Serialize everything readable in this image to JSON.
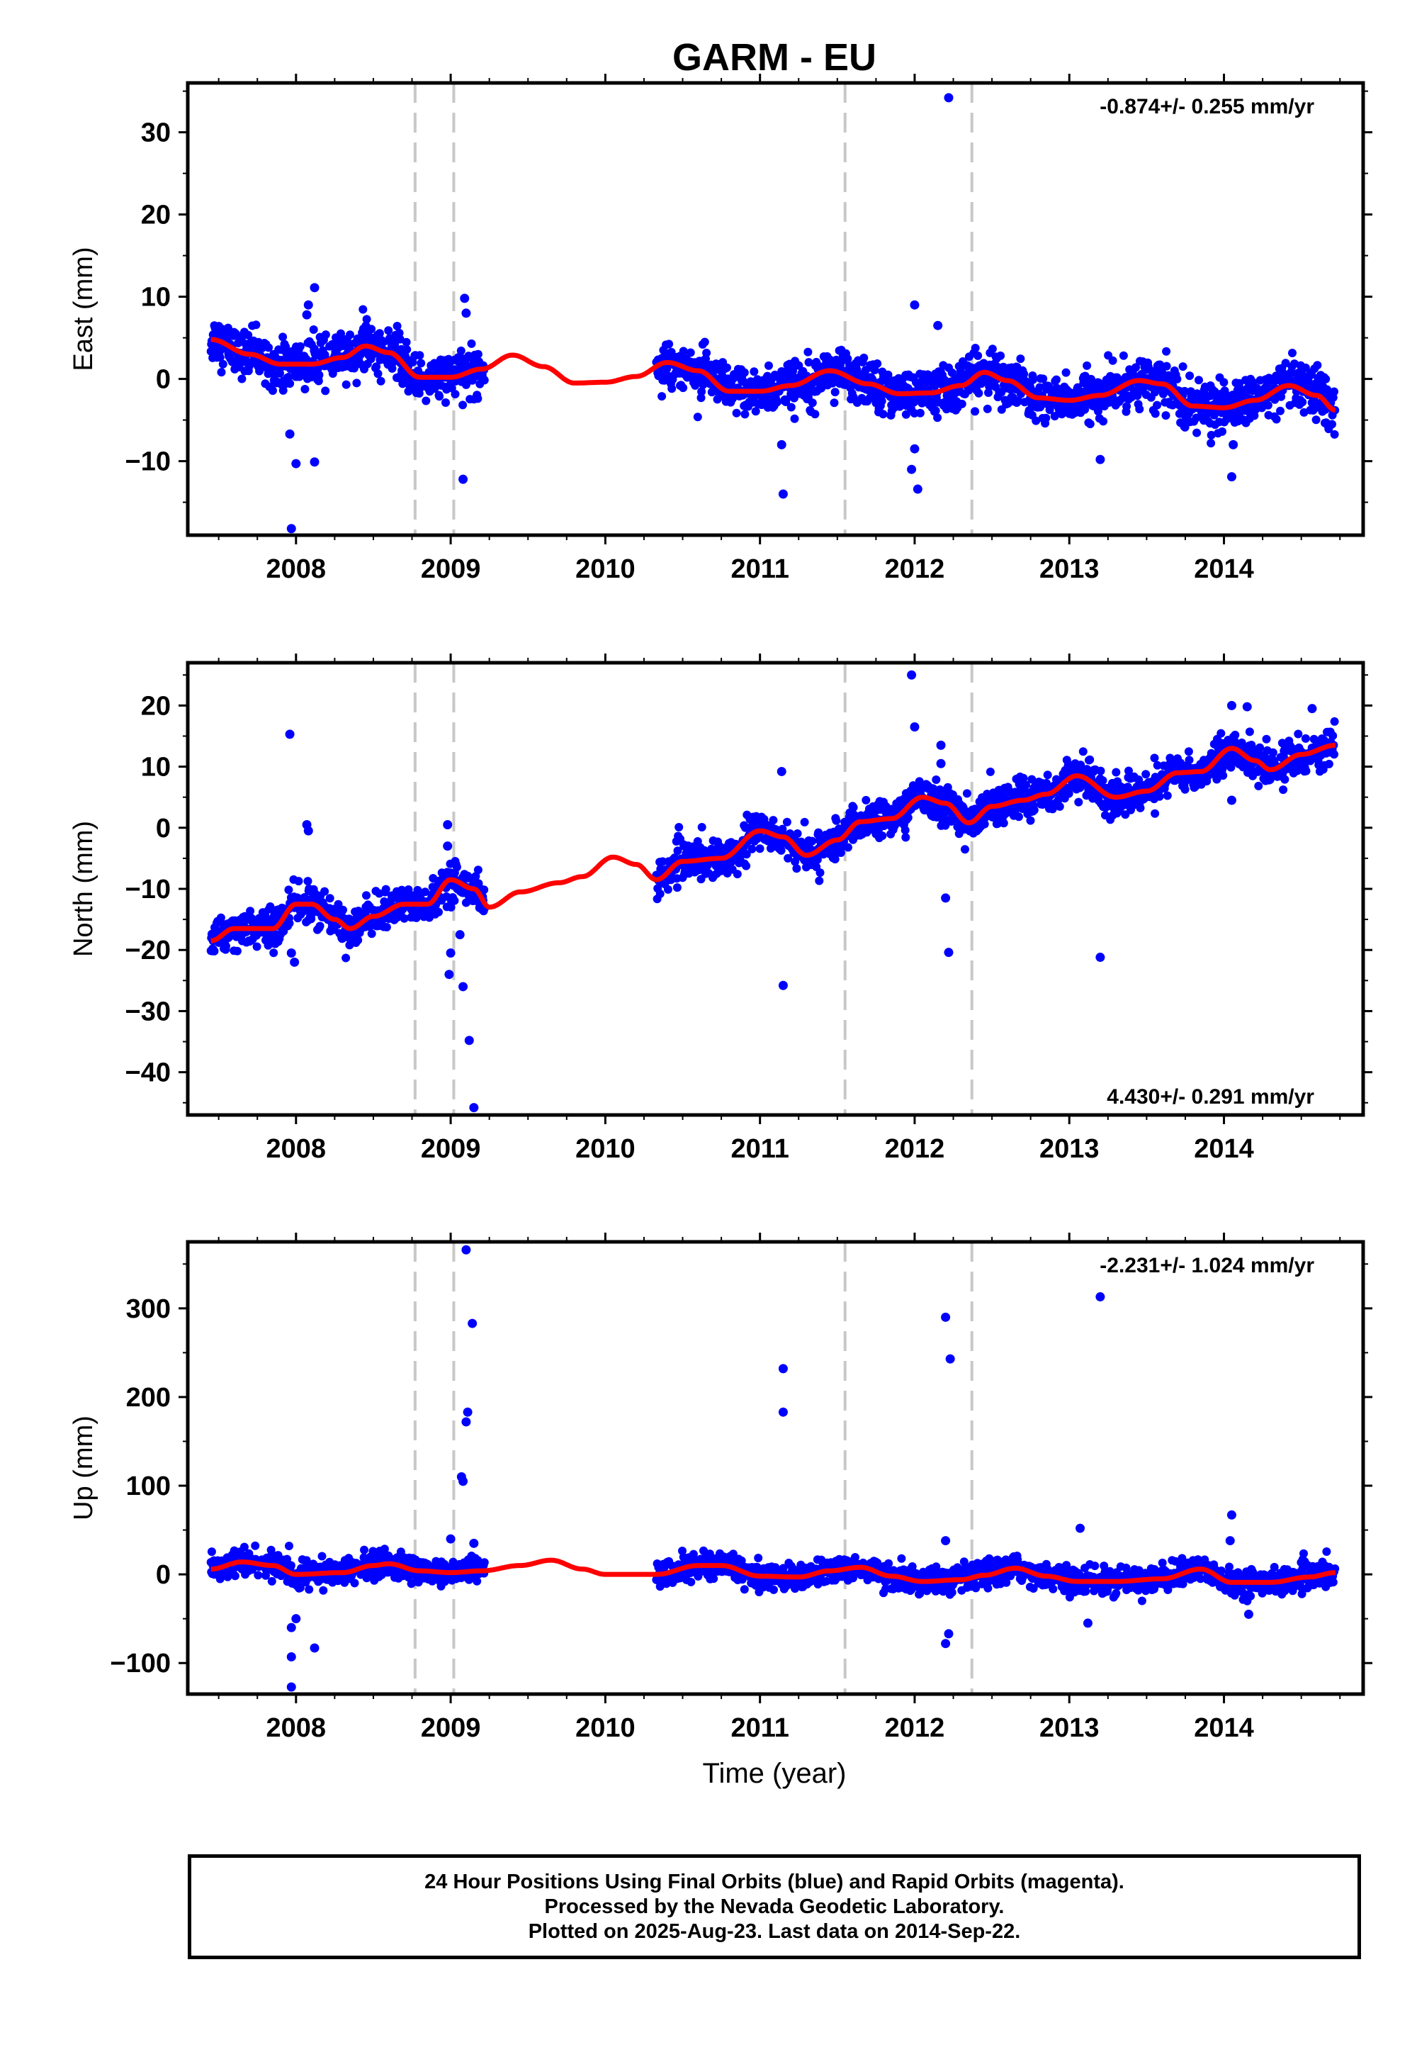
{
  "chart_data": {
    "type": "scatter",
    "title": "GARM - EU",
    "xlabel": "Time (year)",
    "x_tick_labels": [
      "2008",
      "2009",
      "2010",
      "2011",
      "2012",
      "2013",
      "2014"
    ],
    "xlim": [
      2007.3,
      2014.9
    ],
    "vertical_dashed_lines": [
      2008.77,
      2009.02,
      2011.55,
      2012.37
    ],
    "colors": {
      "points": "#0000ff",
      "model": "#ff0000",
      "dashed": "#c8c8c8"
    },
    "panels": [
      {
        "name": "east",
        "ylabel": "East (mm)",
        "ylim": [
          -19,
          36
        ],
        "y_ticks": [
          -10,
          0,
          10,
          20,
          30
        ],
        "y_tick_labels": [
          "−10",
          "0",
          "10",
          "20",
          "30"
        ],
        "rate": "-0.874+/- 0.255 mm/yr",
        "rate_position": "top-right",
        "data_segments": [
          [
            2007.45,
            2008.8
          ],
          [
            2008.8,
            2009.22
          ],
          [
            2010.33,
            2014.72
          ]
        ],
        "scatter_sd": 1.4,
        "model": {
          "x": [
            2007.45,
            2007.7,
            2007.9,
            2008.1,
            2008.3,
            2008.45,
            2008.6,
            2008.8,
            2009.0,
            2009.2,
            2009.4,
            2009.6,
            2009.8,
            2010.0,
            2010.2,
            2010.4,
            2010.6,
            2010.8,
            2011.0,
            2011.2,
            2011.45,
            2011.7,
            2011.9,
            2012.1,
            2012.3,
            2012.45,
            2012.6,
            2012.8,
            2013.0,
            2013.2,
            2013.45,
            2013.6,
            2013.8,
            2014.0,
            2014.2,
            2014.42,
            2014.6,
            2014.72
          ],
          "y": [
            4.8,
            3.0,
            1.8,
            1.8,
            2.6,
            4.0,
            3.2,
            0.2,
            0.2,
            1.2,
            2.9,
            1.5,
            -0.5,
            -0.4,
            0.3,
            2.0,
            1.0,
            -1.5,
            -1.5,
            -0.8,
            1.0,
            -0.6,
            -1.8,
            -1.7,
            -0.8,
            0.8,
            -0.2,
            -2.3,
            -2.6,
            -2.0,
            -0.2,
            -0.6,
            -3.3,
            -3.5,
            -2.6,
            -0.8,
            -2.0,
            -3.8
          ]
        },
        "outliers": [
          {
            "x": 2007.97,
            "y": -18.2
          },
          {
            "x": 2007.96,
            "y": -6.7
          },
          {
            "x": 2008.0,
            "y": -10.3
          },
          {
            "x": 2008.12,
            "y": -10.1
          },
          {
            "x": 2008.08,
            "y": 9.0
          },
          {
            "x": 2008.12,
            "y": 11.1
          },
          {
            "x": 2008.07,
            "y": 7.8
          },
          {
            "x": 2009.09,
            "y": 9.8
          },
          {
            "x": 2009.08,
            "y": -12.2
          },
          {
            "x": 2009.1,
            "y": 8.0
          },
          {
            "x": 2011.15,
            "y": -14.0
          },
          {
            "x": 2011.14,
            "y": -8.0
          },
          {
            "x": 2012.0,
            "y": 9.0
          },
          {
            "x": 2011.98,
            "y": -11.0
          },
          {
            "x": 2012.02,
            "y": -13.4
          },
          {
            "x": 2012.0,
            "y": -8.5
          },
          {
            "x": 2012.22,
            "y": 34.2
          },
          {
            "x": 2013.2,
            "y": -9.8
          },
          {
            "x": 2014.05,
            "y": -11.9
          },
          {
            "x": 2014.06,
            "y": -8.0
          },
          {
            "x": 2012.15,
            "y": 6.5
          }
        ]
      },
      {
        "name": "north",
        "ylabel": "North (mm)",
        "ylim": [
          -47,
          27
        ],
        "y_ticks": [
          -40,
          -30,
          -20,
          -10,
          0,
          10,
          20
        ],
        "y_tick_labels": [
          "−40",
          "−30",
          "−20",
          "−10",
          "0",
          "10",
          "20"
        ],
        "rate": "4.430+/- 0.291 mm/yr",
        "rate_position": "bottom-right",
        "data_segments": [
          [
            2007.45,
            2008.8
          ],
          [
            2008.8,
            2009.22
          ],
          [
            2010.33,
            2014.72
          ]
        ],
        "scatter_sd": 1.5,
        "model": {
          "x": [
            2007.45,
            2007.6,
            2007.85,
            2008.0,
            2008.1,
            2008.25,
            2008.35,
            2008.5,
            2008.7,
            2008.85,
            2009.0,
            2009.15,
            2009.25,
            2009.45,
            2009.7,
            2009.85,
            2010.05,
            2010.2,
            2010.33,
            2010.5,
            2010.75,
            2011.0,
            2011.15,
            2011.3,
            2011.5,
            2011.65,
            2011.85,
            2012.05,
            2012.2,
            2012.35,
            2012.5,
            2012.7,
            2012.85,
            2013.05,
            2013.3,
            2013.5,
            2013.7,
            2013.85,
            2014.05,
            2014.2,
            2014.3,
            2014.5,
            2014.72
          ],
          "y": [
            -18.5,
            -16.5,
            -16.5,
            -12.5,
            -12.5,
            -15.0,
            -16.5,
            -14.5,
            -12.5,
            -12.5,
            -8.5,
            -10.0,
            -13.0,
            -10.5,
            -9.0,
            -8.0,
            -4.8,
            -6.0,
            -8.5,
            -5.5,
            -5.0,
            -0.5,
            -1.5,
            -4.5,
            -2.0,
            1.0,
            1.5,
            5.0,
            4.0,
            0.8,
            3.5,
            4.5,
            5.5,
            8.5,
            5.0,
            6.0,
            9.0,
            9.2,
            13.0,
            11.0,
            9.5,
            12.0,
            13.5
          ]
        },
        "outliers": [
          {
            "x": 2007.96,
            "y": 15.3
          },
          {
            "x": 2008.07,
            "y": 0.5
          },
          {
            "x": 2008.08,
            "y": -0.5
          },
          {
            "x": 2007.97,
            "y": -20.5
          },
          {
            "x": 2007.99,
            "y": -22.0
          },
          {
            "x": 2008.98,
            "y": 0.5
          },
          {
            "x": 2008.98,
            "y": -3.0
          },
          {
            "x": 2009.0,
            "y": -20.5
          },
          {
            "x": 2008.99,
            "y": -24.0
          },
          {
            "x": 2009.08,
            "y": -26.0
          },
          {
            "x": 2009.12,
            "y": -34.8
          },
          {
            "x": 2009.15,
            "y": -45.8
          },
          {
            "x": 2009.06,
            "y": -17.5
          },
          {
            "x": 2011.15,
            "y": -25.8
          },
          {
            "x": 2011.14,
            "y": 9.2
          },
          {
            "x": 2011.98,
            "y": 25.0
          },
          {
            "x": 2012.0,
            "y": 16.5
          },
          {
            "x": 2012.2,
            "y": -11.5
          },
          {
            "x": 2012.22,
            "y": -20.4
          },
          {
            "x": 2012.17,
            "y": 13.5
          },
          {
            "x": 2012.17,
            "y": 10.5
          },
          {
            "x": 2013.2,
            "y": -21.2
          },
          {
            "x": 2014.05,
            "y": 4.5
          },
          {
            "x": 2014.05,
            "y": 20.0
          },
          {
            "x": 2014.15,
            "y": 19.8
          },
          {
            "x": 2014.57,
            "y": 19.5
          }
        ]
      },
      {
        "name": "up",
        "ylabel": "Up (mm)",
        "ylim": [
          -135,
          375
        ],
        "y_ticks": [
          -100,
          0,
          100,
          200,
          300
        ],
        "y_tick_labels": [
          "−100",
          "0",
          "100",
          "200",
          "300"
        ],
        "rate": "-2.231+/- 1.024 mm/yr",
        "rate_position": "top-right",
        "data_segments": [
          [
            2007.45,
            2008.8
          ],
          [
            2008.8,
            2009.22
          ],
          [
            2010.33,
            2014.72
          ]
        ],
        "scatter_sd": 7.0,
        "model": {
          "x": [
            2007.45,
            2007.65,
            2007.85,
            2008.0,
            2008.3,
            2008.5,
            2008.6,
            2008.8,
            2009.0,
            2009.2,
            2009.45,
            2009.65,
            2009.85,
            2010.0,
            2010.33,
            2010.6,
            2010.75,
            2011.0,
            2011.25,
            2011.45,
            2011.65,
            2011.85,
            2012.05,
            2012.3,
            2012.45,
            2012.65,
            2012.85,
            2013.05,
            2013.3,
            2013.6,
            2013.85,
            2014.05,
            2014.3,
            2014.55,
            2014.72
          ],
          "y": [
            6,
            14,
            10,
            0,
            2,
            10,
            12,
            4,
            2,
            4,
            10,
            16,
            6,
            0,
            0,
            10,
            10,
            -2,
            -3,
            4,
            8,
            -2,
            -8,
            -6,
            -1,
            7,
            -2,
            -8,
            -8,
            -5,
            6,
            -9,
            -9,
            -3,
            2
          ]
        },
        "outliers": [
          {
            "x": 2007.97,
            "y": -127
          },
          {
            "x": 2007.97,
            "y": -93
          },
          {
            "x": 2008.12,
            "y": -83
          },
          {
            "x": 2007.97,
            "y": -60
          },
          {
            "x": 2008.0,
            "y": -50
          },
          {
            "x": 2009.1,
            "y": 366
          },
          {
            "x": 2009.14,
            "y": 283
          },
          {
            "x": 2009.11,
            "y": 183
          },
          {
            "x": 2009.1,
            "y": 172
          },
          {
            "x": 2009.07,
            "y": 110
          },
          {
            "x": 2009.08,
            "y": 105
          },
          {
            "x": 2009.0,
            "y": 40
          },
          {
            "x": 2009.15,
            "y": 35
          },
          {
            "x": 2011.15,
            "y": 232
          },
          {
            "x": 2011.15,
            "y": 183
          },
          {
            "x": 2012.2,
            "y": 290
          },
          {
            "x": 2012.23,
            "y": 243
          },
          {
            "x": 2012.2,
            "y": 38
          },
          {
            "x": 2012.22,
            "y": -67
          },
          {
            "x": 2012.2,
            "y": -78
          },
          {
            "x": 2013.2,
            "y": 313
          },
          {
            "x": 2013.07,
            "y": 52
          },
          {
            "x": 2013.12,
            "y": -55
          },
          {
            "x": 2014.05,
            "y": 67
          },
          {
            "x": 2014.04,
            "y": 38
          },
          {
            "x": 2014.16,
            "y": -45
          }
        ]
      }
    ]
  },
  "footer": {
    "line1": "24 Hour Positions Using Final Orbits (blue) and Rapid Orbits (magenta).",
    "line2": "Processed by the Nevada Geodetic Laboratory.",
    "line3": "Plotted on 2025-Aug-23. Last data on 2014-Sep-22."
  }
}
